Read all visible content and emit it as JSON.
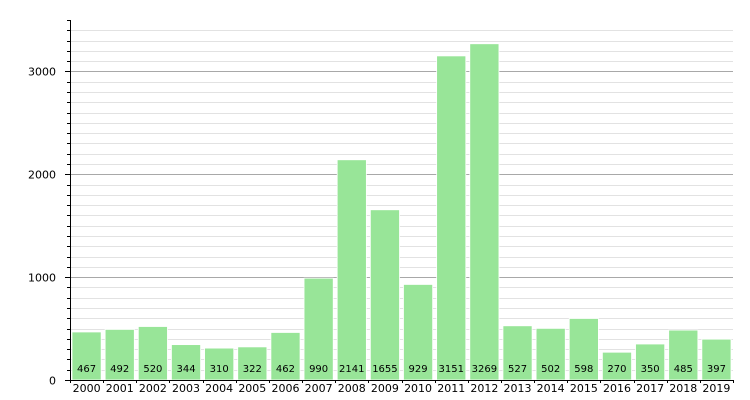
{
  "chart_data": {
    "type": "bar",
    "title": "",
    "xlabel": "",
    "ylabel": "",
    "categories": [
      "2000",
      "2001",
      "2002",
      "2003",
      "2004",
      "2005",
      "2006",
      "2007",
      "2008",
      "2009",
      "2010",
      "2011",
      "2012",
      "2013",
      "2014",
      "2015",
      "2016",
      "2017",
      "2018",
      "2019"
    ],
    "values": [
      467,
      492,
      520,
      344,
      310,
      322,
      462,
      990,
      2141,
      1655,
      929,
      3151,
      3269,
      527,
      502,
      598,
      270,
      350,
      485,
      397
    ],
    "ylim": [
      0,
      3500
    ],
    "yticks": [
      0,
      1000,
      2000,
      3000
    ],
    "y_minor_step": 100,
    "grid": true,
    "bar_color": "#98e598",
    "bar_edge_color": "#ffffff",
    "major_grid_color": "#a8a8a8",
    "minor_grid_color": "#e2e2e2"
  }
}
